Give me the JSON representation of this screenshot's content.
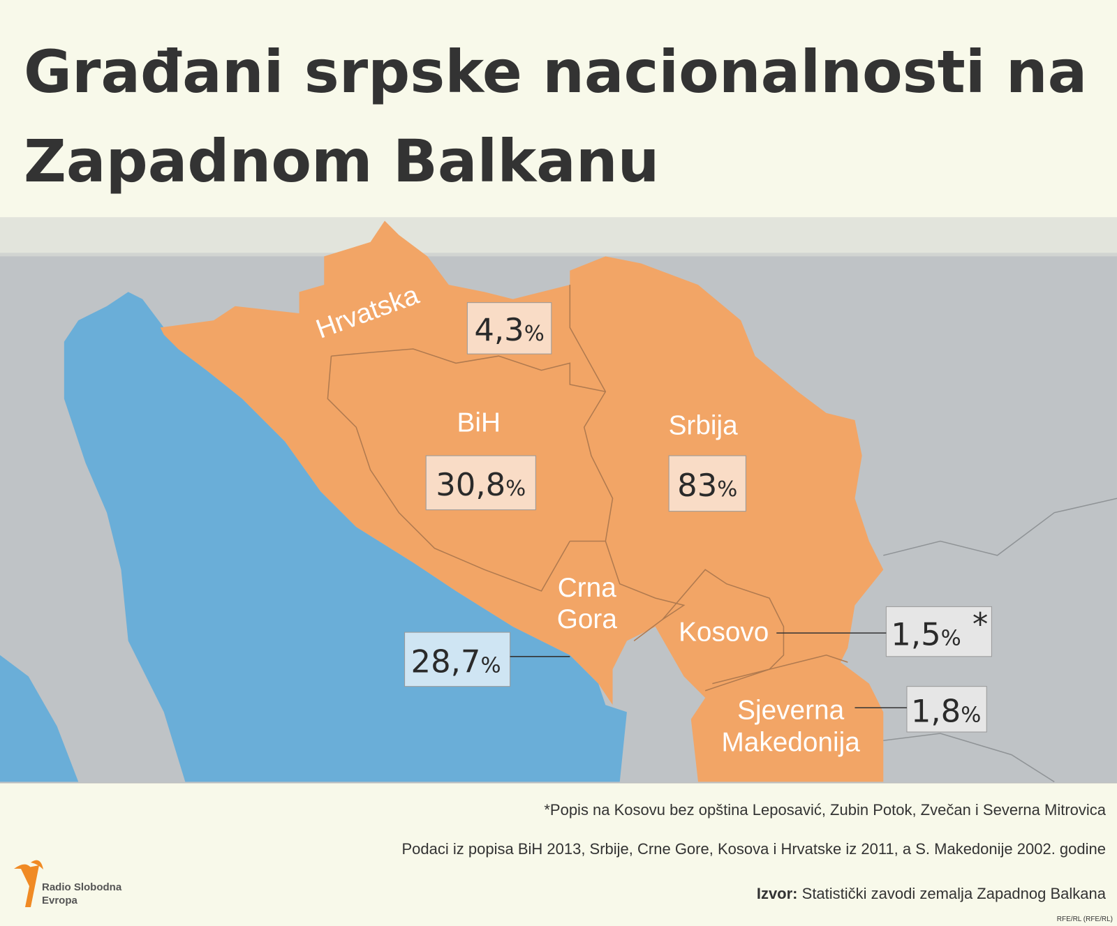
{
  "title": "Građani srpske nacionalnosti na Zapadnom Balkanu",
  "regions": [
    {
      "name": "Hrvatska",
      "number": "4,3",
      "unit": "%"
    },
    {
      "name": "BiH",
      "number": "30,8",
      "unit": "%"
    },
    {
      "name": "Srbija",
      "number": "83",
      "unit": "%"
    },
    {
      "name": "Crna Gora",
      "number": "28,7",
      "unit": "%"
    },
    {
      "name": "Kosovo",
      "number": "1,5",
      "unit": "%",
      "note": "*"
    },
    {
      "name": "Sjeverna Makedonija",
      "number": "1,8",
      "unit": "%"
    }
  ],
  "footnotes": [
    "*Popis na Kosovu bez opština Leposavić, Zubin Potok, Zvečan i Severna Mitrovica",
    "Podaci iz popisa BiH 2013, Srbije, Crne Gore, Kosova i Hrvatske iz 2011, a S. Makedonije 2002. godine"
  ],
  "source": {
    "label": "Izvor:",
    "text": "Statistički zavodi zemalja Zapadnog Balkana"
  },
  "logo": {
    "line1": "Radio Slobodna",
    "line2": "Evropa"
  },
  "credit": "RFE/RL (RFE/RL)"
}
